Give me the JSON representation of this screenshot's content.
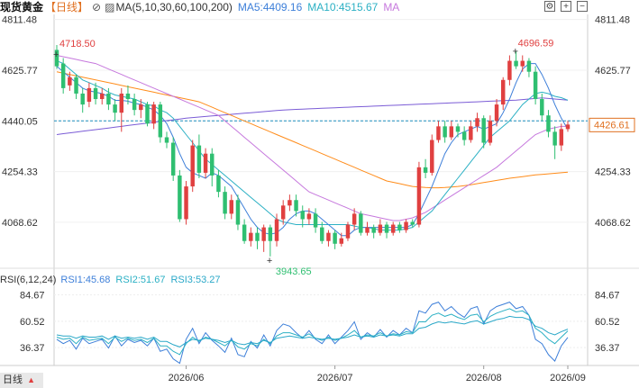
{
  "header": {
    "symbol": "现货黄金",
    "period_label": "【日线】",
    "ma_label": "MA(5,10,30,60,100,200)",
    "ma5_label": "MA5:4409.16",
    "ma10_label": "MA10:4515.67",
    "ma_more": "MA"
  },
  "rsi_header": {
    "label": "RSI(6,12,24)",
    "rsi1": "RSI1:45.68",
    "rsi2": "RSI2:51.67",
    "rsi3": "RSI3:53.27"
  },
  "bottom_tab": {
    "label": "日线"
  },
  "colors": {
    "up": "#e04040",
    "down": "#2fbf71",
    "ma5": "#3d7fd9",
    "ma10": "#2bb0c4",
    "ma30": "#c678dd",
    "ma60": "#ff8c1a",
    "ma100": "#7b5cd6",
    "ma200": "#000000"
  },
  "chart_data": [
    {
      "type": "candlestick",
      "price_ticks": [
        "4811.48",
        "4625.77",
        "4440.05",
        "4254.33",
        "4068.62"
      ],
      "ylim": [
        3920,
        4830
      ],
      "current_price": "4426.61",
      "high_annotation": "4718.50",
      "high2_annotation": "4696.59",
      "low_annotation": "3943.65",
      "x_ticks": [
        "2026/06",
        "2026/07",
        "2026/08",
        "2026/09"
      ],
      "candles": [
        [
          4700,
          4640,
          4718,
          4630
        ],
        [
          4650,
          4560,
          4670,
          4540
        ],
        [
          4570,
          4600,
          4620,
          4550
        ],
        [
          4600,
          4540,
          4610,
          4520
        ],
        [
          4540,
          4500,
          4560,
          4470
        ],
        [
          4510,
          4560,
          4580,
          4490
        ],
        [
          4560,
          4520,
          4580,
          4500
        ],
        [
          4520,
          4540,
          4560,
          4500
        ],
        [
          4540,
          4500,
          4560,
          4480
        ],
        [
          4500,
          4470,
          4520,
          4440
        ],
        [
          4470,
          4540,
          4560,
          4400
        ],
        [
          4540,
          4520,
          4570,
          4500
        ],
        [
          4520,
          4480,
          4540,
          4460
        ],
        [
          4480,
          4500,
          4520,
          4450
        ],
        [
          4500,
          4430,
          4510,
          4420
        ],
        [
          4430,
          4500,
          4510,
          4410
        ],
        [
          4500,
          4380,
          4510,
          4360
        ],
        [
          4380,
          4360,
          4400,
          4340
        ],
        [
          4360,
          4240,
          4380,
          4220
        ],
        [
          4240,
          4080,
          4260,
          4070
        ],
        [
          4080,
          4200,
          4220,
          4060
        ],
        [
          4200,
          4350,
          4370,
          4180
        ],
        [
          4350,
          4250,
          4390,
          4230
        ],
        [
          4250,
          4320,
          4340,
          4230
        ],
        [
          4320,
          4240,
          4340,
          4200
        ],
        [
          4240,
          4180,
          4260,
          4160
        ],
        [
          4180,
          4100,
          4200,
          4080
        ],
        [
          4100,
          4150,
          4170,
          4080
        ],
        [
          4150,
          4060,
          4170,
          4040
        ],
        [
          4060,
          4000,
          4080,
          3990
        ],
        [
          4000,
          4030,
          4050,
          3980
        ],
        [
          4030,
          4000,
          4050,
          3970
        ],
        [
          4000,
          4050,
          4060,
          3960
        ],
        [
          4050,
          4000,
          4060,
          3943.65
        ],
        [
          4000,
          4080,
          4100,
          3980
        ],
        [
          4080,
          4130,
          4150,
          4060
        ],
        [
          4130,
          4150,
          4170,
          4110
        ],
        [
          4150,
          4110,
          4170,
          4090
        ],
        [
          4110,
          4080,
          4130,
          4050
        ],
        [
          4080,
          4100,
          4120,
          4060
        ],
        [
          4100,
          4050,
          4120,
          4030
        ],
        [
          4050,
          4000,
          4070,
          3990
        ],
        [
          4000,
          4030,
          4040,
          3980
        ],
        [
          4030,
          3990,
          4040,
          3970
        ],
        [
          3990,
          4010,
          4030,
          3980
        ],
        [
          4010,
          4060,
          4070,
          4000
        ],
        [
          4060,
          4100,
          4120,
          4040
        ],
        [
          4100,
          4030,
          4110,
          4020
        ],
        [
          4030,
          4050,
          4070,
          4020
        ],
        [
          4050,
          4030,
          4060,
          4010
        ],
        [
          4030,
          4060,
          4080,
          4020
        ],
        [
          4060,
          4030,
          4070,
          4010
        ],
        [
          4030,
          4060,
          4070,
          4020
        ],
        [
          4060,
          4040,
          4070,
          4030
        ],
        [
          4040,
          4070,
          4080,
          4030
        ],
        [
          4070,
          4060,
          4080,
          4050
        ],
        [
          4060,
          4270,
          4290,
          4050
        ],
        [
          4270,
          4250,
          4300,
          4230
        ],
        [
          4250,
          4370,
          4390,
          4240
        ],
        [
          4370,
          4420,
          4440,
          4360
        ],
        [
          4420,
          4380,
          4440,
          4360
        ],
        [
          4380,
          4420,
          4440,
          4370
        ],
        [
          4420,
          4400,
          4430,
          4380
        ],
        [
          4400,
          4370,
          4420,
          4350
        ],
        [
          4370,
          4420,
          4440,
          4360
        ],
        [
          4420,
          4450,
          4470,
          4400
        ],
        [
          4450,
          4360,
          4460,
          4340
        ],
        [
          4360,
          4440,
          4460,
          4350
        ],
        [
          4440,
          4500,
          4520,
          4420
        ],
        [
          4500,
          4590,
          4600,
          4480
        ],
        [
          4590,
          4660,
          4680,
          4570
        ],
        [
          4660,
          4640,
          4696.59,
          4630
        ],
        [
          4640,
          4660,
          4680,
          4620
        ],
        [
          4660,
          4620,
          4670,
          4600
        ],
        [
          4620,
          4520,
          4640,
          4500
        ],
        [
          4520,
          4460,
          4540,
          4440
        ],
        [
          4460,
          4400,
          4480,
          4380
        ],
        [
          4400,
          4350,
          4420,
          4300
        ],
        [
          4350,
          4410,
          4430,
          4330
        ],
        [
          4410,
          4426.61,
          4440,
          4400
        ]
      ],
      "ma5": [
        4640,
        4620,
        4600,
        4580,
        4560,
        4550,
        4545,
        4540,
        4530,
        4515,
        4515,
        4512,
        4505,
        4500,
        4490,
        4480,
        4460,
        4430,
        4380,
        4320,
        4270,
        4250,
        4240,
        4230,
        4250,
        4240,
        4220,
        4200,
        4160,
        4120,
        4080,
        4050,
        4030,
        4025,
        4030,
        4050,
        4080,
        4100,
        4110,
        4110,
        4100,
        4080,
        4060,
        4040,
        4020,
        4020,
        4040,
        4050,
        4050,
        4050,
        4050,
        4050,
        4050,
        4050,
        4050,
        4060,
        4100,
        4150,
        4200,
        4260,
        4320,
        4360,
        4390,
        4400,
        4410,
        4420,
        4410,
        4420,
        4430,
        4470,
        4520,
        4580,
        4630,
        4650,
        4650,
        4610,
        4560,
        4500,
        4450,
        4409.16
      ],
      "ma10": [
        4660,
        4650,
        4630,
        4610,
        4590,
        4580,
        4570,
        4560,
        4545,
        4535,
        4530,
        4525,
        4520,
        4510,
        4500,
        4495,
        4480,
        4470,
        4450,
        4420,
        4390,
        4360,
        4330,
        4300,
        4280,
        4260,
        4240,
        4220,
        4200,
        4180,
        4160,
        4140,
        4120,
        4100,
        4080,
        4070,
        4065,
        4060,
        4060,
        4060,
        4060,
        4060,
        4060,
        4060,
        4060,
        4060,
        4055,
        4050,
        4050,
        4045,
        4040,
        4040,
        4040,
        4040,
        4045,
        4050,
        4070,
        4090,
        4110,
        4140,
        4170,
        4200,
        4230,
        4260,
        4290,
        4320,
        4350,
        4380,
        4400,
        4420,
        4440,
        4470,
        4500,
        4520,
        4540,
        4545,
        4540,
        4530,
        4525,
        4515.67
      ],
      "ma30": [
        4680,
        4675,
        4670,
        4665,
        4660,
        4655,
        4650,
        4640,
        4630,
        4620,
        4610,
        4600,
        4590,
        4580,
        4570,
        4560,
        4550,
        4540,
        4530,
        4520,
        4510,
        4500,
        4490,
        4480,
        4470,
        4460,
        4440,
        4420,
        4400,
        4380,
        4360,
        4340,
        4320,
        4300,
        4280,
        4260,
        4240,
        4220,
        4200,
        4180,
        4170,
        4160,
        4150,
        4140,
        4130,
        4120,
        4110,
        4100,
        4095,
        4090,
        4085,
        4080,
        4075,
        4075,
        4080,
        4085,
        4095,
        4105,
        4120,
        4135,
        4150,
        4165,
        4180,
        4195,
        4210,
        4225,
        4240,
        4255,
        4270,
        4290,
        4310,
        4330,
        4350,
        4370,
        4390,
        4400,
        4410,
        4415,
        4420,
        4420
      ],
      "ma60": [
        4620,
        4615,
        4610,
        4605,
        4600,
        4595,
        4590,
        4585,
        4580,
        4575,
        4570,
        4565,
        4560,
        4555,
        4550,
        4545,
        4540,
        4535,
        4530,
        4525,
        4520,
        4515,
        4510,
        4500,
        4490,
        4480,
        4470,
        4460,
        4450,
        4440,
        4430,
        4420,
        4410,
        4400,
        4390,
        4380,
        4370,
        4360,
        4350,
        4340,
        4330,
        4320,
        4310,
        4300,
        4290,
        4280,
        4270,
        4260,
        4250,
        4240,
        4230,
        4220,
        4215,
        4210,
        4205,
        4200,
        4198,
        4196,
        4195,
        4195,
        4196,
        4198,
        4200,
        4203,
        4206,
        4210,
        4214,
        4218,
        4222,
        4226,
        4230,
        4233,
        4236,
        4239,
        4242,
        4244,
        4246,
        4248,
        4250,
        4252
      ],
      "ma100": [
        4390,
        4393,
        4396,
        4399,
        4402,
        4405,
        4408,
        4411,
        4414,
        4417,
        4420,
        4423,
        4426,
        4429,
        4432,
        4435,
        4438,
        4441,
        4444,
        4447,
        4450,
        4452,
        4454,
        4456,
        4458,
        4460,
        4462,
        4464,
        4466,
        4468,
        4470,
        4472,
        4474,
        4476,
        4478,
        4480,
        4481,
        4482,
        4483,
        4484,
        4485,
        4486,
        4487,
        4488,
        4489,
        4490,
        4491,
        4492,
        4493,
        4494,
        4495,
        4496,
        4497,
        4498,
        4499,
        4500,
        4501,
        4502,
        4503,
        4504,
        4505,
        4506,
        4507,
        4508,
        4509,
        4510,
        4511,
        4512,
        4513,
        4514,
        4515,
        4516,
        4518,
        4520,
        4522,
        4524,
        4522,
        4520,
        4518,
        4516
      ]
    },
    {
      "type": "line",
      "title": "RSI(6,12,24)",
      "y_ticks": [
        "84.67",
        "60.52",
        "36.37"
      ],
      "ylim": [
        20,
        95
      ],
      "series": [
        {
          "name": "RSI1",
          "values": [
            44,
            40,
            43,
            35,
            45,
            40,
            42,
            44,
            36,
            47,
            38,
            44,
            41,
            43,
            38,
            45,
            33,
            35,
            26,
            22,
            44,
            54,
            40,
            50,
            43,
            38,
            32,
            45,
            30,
            28,
            42,
            36,
            48,
            38,
            52,
            58,
            56,
            50,
            45,
            52,
            44,
            40,
            48,
            40,
            46,
            52,
            60,
            44,
            50,
            46,
            53,
            46,
            52,
            48,
            54,
            50,
            70,
            68,
            76,
            78,
            70,
            74,
            68,
            64,
            72,
            74,
            58,
            70,
            74,
            76,
            78,
            72,
            74,
            66,
            44,
            40,
            30,
            24,
            38,
            45.68
          ]
        },
        {
          "name": "RSI2",
          "values": [
            46,
            44,
            45,
            40,
            46,
            43,
            44,
            45,
            40,
            46,
            42,
            45,
            43,
            44,
            41,
            45,
            38,
            38,
            33,
            30,
            40,
            46,
            42,
            46,
            44,
            41,
            38,
            43,
            37,
            35,
            40,
            38,
            44,
            40,
            47,
            50,
            50,
            48,
            46,
            49,
            45,
            43,
            46,
            43,
            45,
            48,
            52,
            46,
            48,
            47,
            50,
            47,
            49,
            48,
            51,
            50,
            60,
            60,
            66,
            68,
            65,
            67,
            64,
            62,
            66,
            67,
            60,
            65,
            68,
            70,
            72,
            69,
            70,
            66,
            54,
            50,
            44,
            40,
            46,
            51.67
          ]
        },
        {
          "name": "RSI3",
          "values": [
            48,
            47,
            47,
            45,
            47,
            46,
            46,
            47,
            44,
            47,
            45,
            46,
            45,
            46,
            44,
            46,
            42,
            42,
            39,
            37,
            41,
            44,
            43,
            45,
            44,
            43,
            41,
            43,
            40,
            39,
            41,
            40,
            43,
            41,
            45,
            46,
            47,
            46,
            45,
            46,
            45,
            44,
            45,
            44,
            45,
            46,
            48,
            46,
            47,
            46,
            48,
            47,
            48,
            47,
            49,
            49,
            54,
            55,
            58,
            60,
            59,
            60,
            59,
            58,
            60,
            61,
            58,
            60,
            62,
            63,
            65,
            64,
            64,
            62,
            56,
            54,
            50,
            48,
            51,
            53.27
          ]
        }
      ]
    }
  ]
}
